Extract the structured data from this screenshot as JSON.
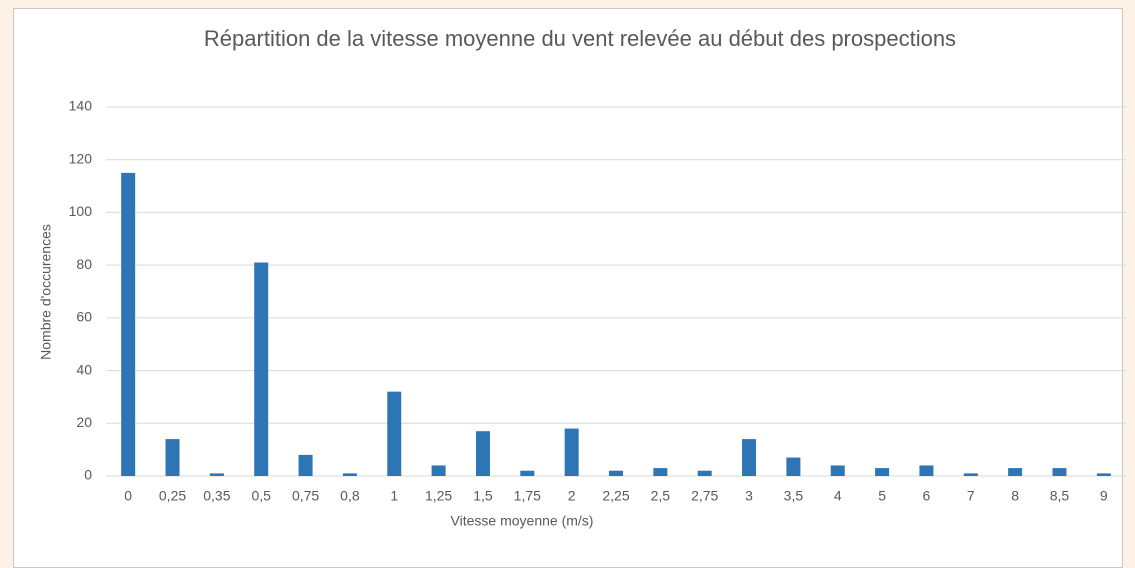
{
  "chart_data": {
    "type": "bar",
    "title": "Répartition de la vitesse moyenne du vent relevée au début des prospections",
    "x_label": "Vitesse moyenne (m/s)",
    "y_label": "Nombre d'occurences",
    "categories": [
      "0",
      "0,25",
      "0,35",
      "0,5",
      "0,75",
      "0,8",
      "1",
      "1,25",
      "1,5",
      "1,75",
      "2",
      "2,25",
      "2,5",
      "2,75",
      "3",
      "3,5",
      "4",
      "5",
      "6",
      "7",
      "8",
      "8,5",
      "9"
    ],
    "values": [
      115,
      14,
      1,
      81,
      8,
      1,
      32,
      4,
      17,
      2,
      18,
      2,
      3,
      2,
      14,
      7,
      4,
      3,
      4,
      1,
      3,
      3,
      1
    ],
    "color": "#2e75b6",
    "ylim": [
      0,
      140
    ],
    "yticks": [
      0,
      20,
      40,
      60,
      80,
      100,
      120,
      140
    ],
    "grid": true
  }
}
